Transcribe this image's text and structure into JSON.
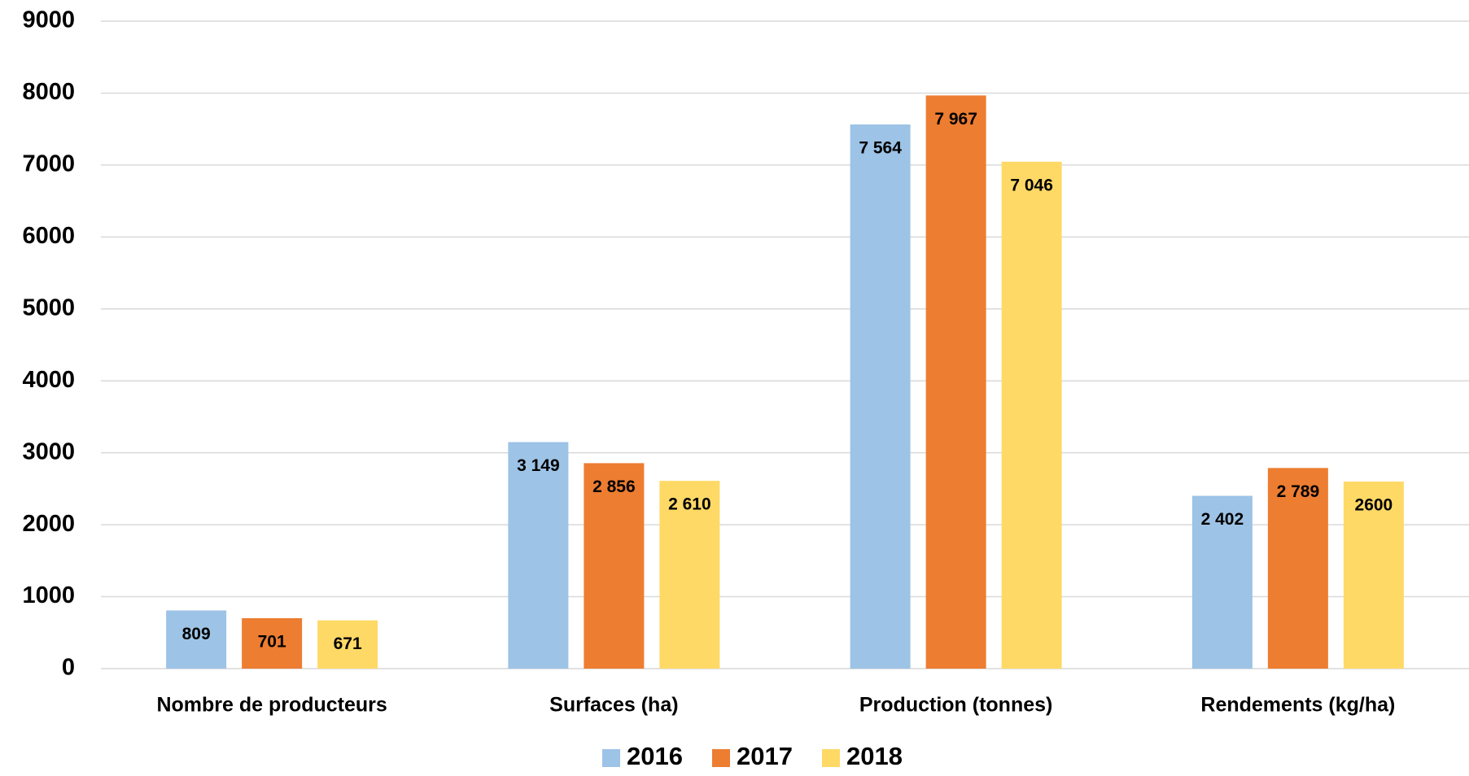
{
  "chart_data": {
    "type": "bar",
    "categories": [
      "Nombre de producteurs",
      "Surfaces (ha)",
      "Production (tonnes)",
      "Rendements (kg/ha)"
    ],
    "series": [
      {
        "name": "2016",
        "color": "#9dc3e6",
        "values": [
          809,
          3149,
          7564,
          2402
        ],
        "value_labels": [
          "809",
          "3 149",
          "7 564",
          "2 402"
        ]
      },
      {
        "name": "2017",
        "color": "#ed7d31",
        "values": [
          701,
          2856,
          7967,
          2789
        ],
        "value_labels": [
          "701",
          "2 856",
          "7 967",
          "2 789"
        ]
      },
      {
        "name": "2018",
        "color": "#ffd966",
        "values": [
          671,
          2610,
          7046,
          2600
        ],
        "value_labels": [
          "671",
          "2 610",
          "7 046",
          "2600"
        ]
      }
    ],
    "ylim": [
      0,
      9000
    ],
    "yticks": [
      0,
      1000,
      2000,
      3000,
      4000,
      5000,
      6000,
      7000,
      8000,
      9000
    ],
    "grid": true,
    "legend": "bottom"
  }
}
